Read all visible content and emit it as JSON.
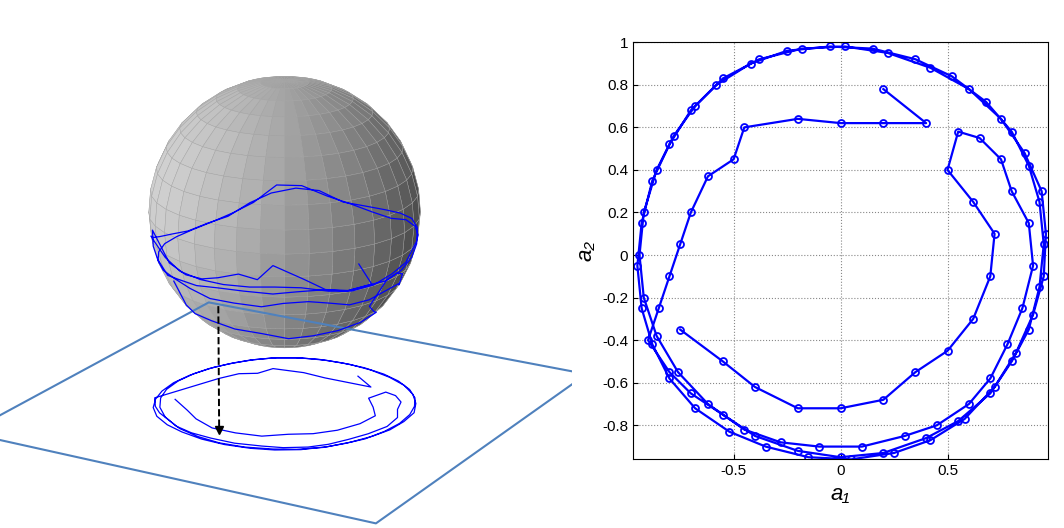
{
  "chart_data": {
    "type": "line",
    "x_label": "a₁",
    "y_label": "a₂",
    "color": "#0000ff",
    "marker": "o",
    "line_style": "solid",
    "grid": true,
    "xlim": [
      -0.97,
      0.97
    ],
    "xticks": [
      -0.5,
      0,
      0.5
    ],
    "ylim": [
      -0.96,
      1
    ],
    "yticks": [
      -0.8,
      -0.6,
      -0.4,
      -0.2,
      0,
      0.2,
      0.4,
      0.6,
      0.8,
      1
    ],
    "x": [
      0.2,
      0.4,
      0.2,
      0.0,
      -0.2,
      -0.45,
      -0.5,
      -0.62,
      -0.7,
      -0.75,
      -0.8,
      -0.85,
      -0.9,
      -0.8,
      -0.7,
      -0.55,
      -0.4,
      -0.2,
      0.0,
      0.2,
      0.4,
      0.55,
      0.7,
      0.8,
      0.88,
      0.93,
      0.95,
      0.93,
      0.88,
      0.8,
      0.68,
      0.52,
      0.35,
      0.15,
      -0.05,
      -0.25,
      -0.42,
      -0.58,
      -0.7,
      -0.8,
      -0.88,
      -0.93,
      -0.95,
      -0.93,
      -0.88,
      -0.8,
      -0.68,
      -0.52,
      -0.35,
      -0.15,
      0.05,
      0.25,
      0.42,
      0.58,
      0.72,
      0.82,
      0.9,
      0.95,
      0.96,
      0.94,
      0.86,
      0.75,
      0.6,
      0.42,
      0.22,
      0.02,
      -0.18,
      -0.38,
      -0.55,
      -0.68,
      -0.78,
      -0.86,
      -0.92,
      -0.94,
      -0.92,
      -0.86,
      -0.76,
      -0.62,
      -0.45,
      -0.28,
      -0.1,
      0.1,
      0.3,
      0.45,
      0.6,
      0.7,
      0.78,
      0.85,
      0.9,
      0.88,
      0.8,
      0.75,
      0.65,
      0.55,
      0.5,
      0.62,
      0.72,
      0.7,
      0.62,
      0.5,
      0.35,
      0.2,
      0.0,
      -0.2,
      -0.4,
      -0.55,
      -0.75
    ],
    "values": [
      0.78,
      0.62,
      0.62,
      0.62,
      0.64,
      0.6,
      0.45,
      0.37,
      0.2,
      0.05,
      -0.1,
      -0.25,
      -0.4,
      -0.55,
      -0.65,
      -0.75,
      -0.85,
      -0.92,
      -0.95,
      -0.93,
      -0.86,
      -0.78,
      -0.65,
      -0.5,
      -0.35,
      -0.15,
      0.05,
      0.25,
      0.42,
      0.58,
      0.72,
      0.84,
      0.92,
      0.97,
      0.98,
      0.96,
      0.9,
      0.8,
      0.68,
      0.52,
      0.35,
      0.15,
      -0.05,
      -0.25,
      -0.42,
      -0.58,
      -0.72,
      -0.83,
      -0.9,
      -0.95,
      -0.96,
      -0.93,
      -0.87,
      -0.77,
      -0.62,
      -0.46,
      -0.28,
      -0.1,
      0.1,
      0.3,
      0.48,
      0.64,
      0.78,
      0.88,
      0.95,
      0.98,
      0.97,
      0.92,
      0.83,
      0.7,
      0.56,
      0.4,
      0.2,
      0.0,
      -0.2,
      -0.38,
      -0.55,
      -0.7,
      -0.82,
      -0.88,
      -0.9,
      -0.9,
      -0.85,
      -0.8,
      -0.7,
      -0.58,
      -0.42,
      -0.25,
      -0.05,
      0.15,
      0.3,
      0.45,
      0.55,
      0.58,
      0.4,
      0.25,
      0.1,
      -0.1,
      -0.3,
      -0.45,
      -0.55,
      -0.68,
      -0.72,
      -0.72,
      -0.62,
      -0.5,
      -0.35
    ]
  }
}
